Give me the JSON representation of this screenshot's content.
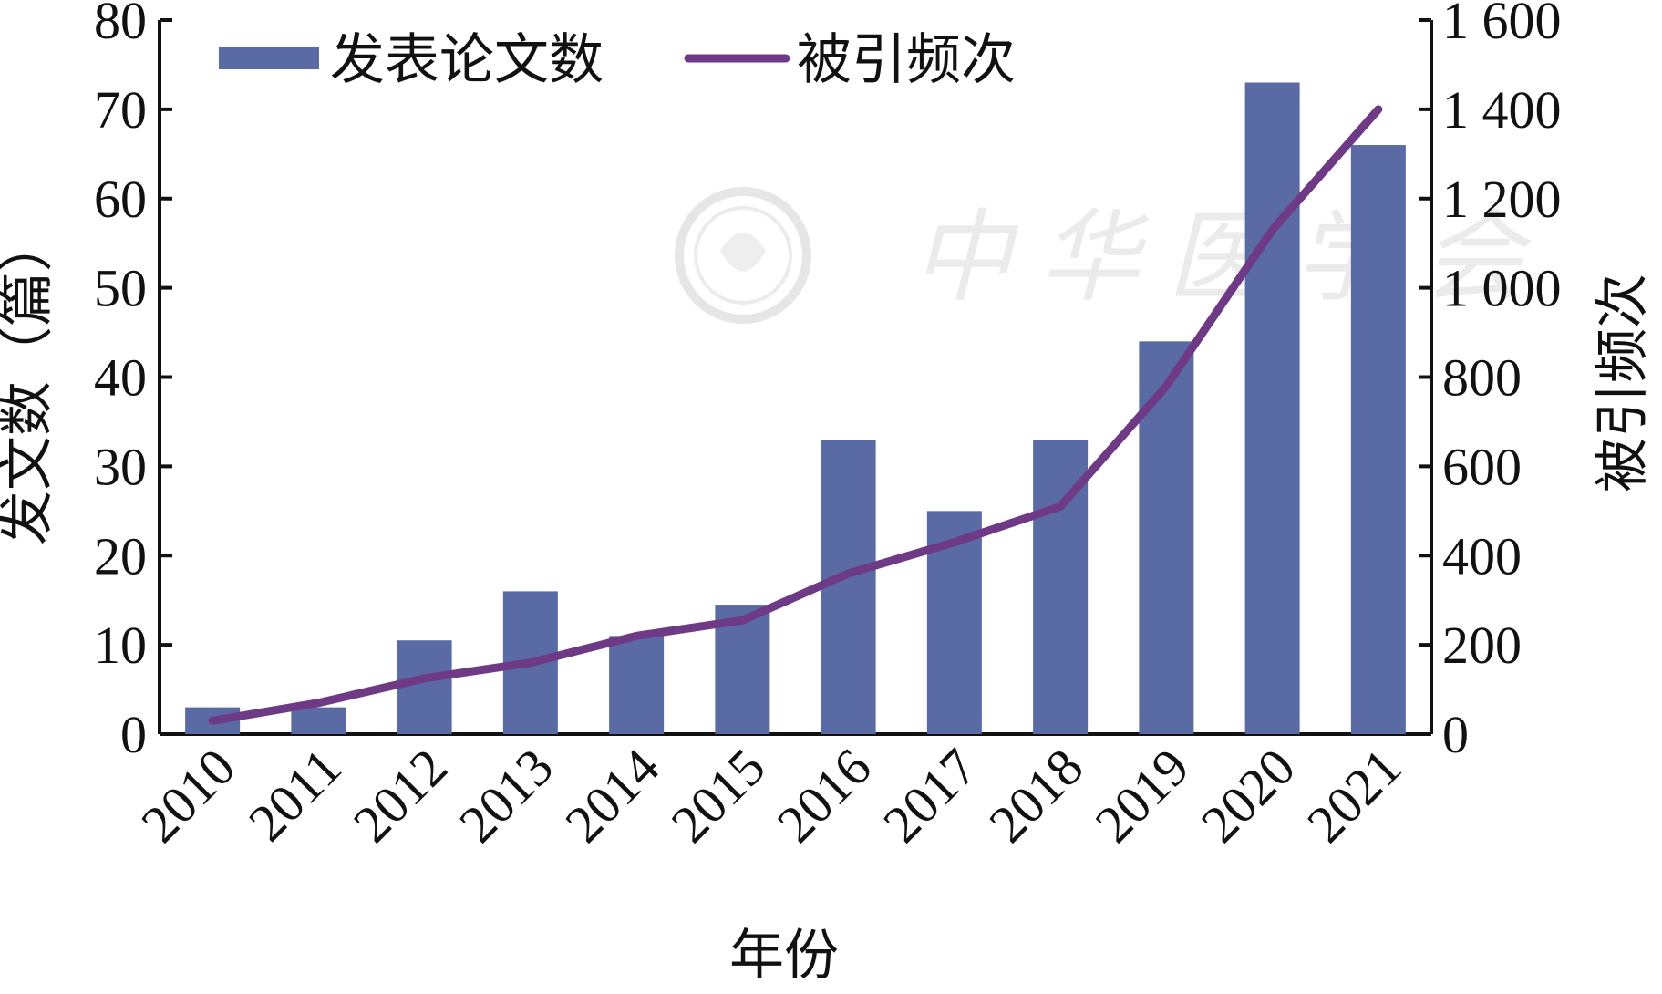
{
  "chart_data": {
    "type": "bar",
    "categories": [
      "2010",
      "2011",
      "2012",
      "2013",
      "2014",
      "2015",
      "2016",
      "2017",
      "2018",
      "2019",
      "2020",
      "2021"
    ],
    "series": [
      {
        "name": "发表论文数",
        "type": "bar",
        "axis": "left",
        "values": [
          3,
          3,
          10.5,
          16,
          11,
          14.5,
          33,
          25,
          33,
          44,
          73,
          66
        ]
      },
      {
        "name": "被引频次",
        "type": "line",
        "axis": "right",
        "values": [
          30,
          70,
          125,
          160,
          220,
          255,
          360,
          430,
          510,
          780,
          1130,
          1400
        ]
      }
    ],
    "xlabel": "年份",
    "ylabel": "发文数（篇）",
    "y2label": "被引频次",
    "ylim": [
      0,
      80
    ],
    "y2lim": [
      0,
      1600
    ],
    "yticks": [
      "0",
      "10",
      "20",
      "30",
      "40",
      "50",
      "60",
      "70",
      "80"
    ],
    "y2ticks": [
      "0",
      "200",
      "400",
      "600",
      "800",
      "1 000",
      "1 200",
      "1 400",
      "1 600"
    ],
    "legend_position": "top-left",
    "grid": false,
    "colors": {
      "bar": "#5a6aa5",
      "line": "#6e3a86",
      "axis": "#111111"
    }
  },
  "watermark": {
    "text": "中华医学会"
  }
}
